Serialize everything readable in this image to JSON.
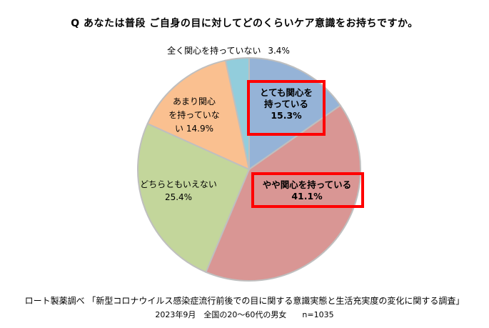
{
  "chart_data": {
    "type": "pie",
    "title": "Q あなたは普段 ご自身の目に対してどのくらいケア意識をお持ちですか。",
    "slices": [
      {
        "label": "とても関心を\n持っている",
        "value": 15.3,
        "value_label": "15.3%",
        "color": "#95b3d7"
      },
      {
        "label": "やや関心を持っている",
        "value": 41.1,
        "value_label": "41.1%",
        "color": "#d99694"
      },
      {
        "label": "どちらともいえない",
        "value": 25.4,
        "value_label": "25.4%",
        "color": "#c3d69b"
      },
      {
        "label": "あまり関心\nを持っていな\nい",
        "value": 14.9,
        "value_label": "14.9%",
        "color": "#fac090"
      },
      {
        "label": "全く関心を持っていない",
        "value": 3.4,
        "value_label": "3.4%",
        "color": "#92cddc"
      }
    ],
    "start": "12 o'clock",
    "direction": "clockwise",
    "legend": "none",
    "highlight_color": "#ff0000"
  },
  "source": {
    "line1": "ロート製薬調べ 「新型コロナウイルス感染症流行前後での目に関する意識実態と生活充実度の変化に関する調査」",
    "line2": "2023年9月　全国の20～60代の男女　　n=1035"
  }
}
